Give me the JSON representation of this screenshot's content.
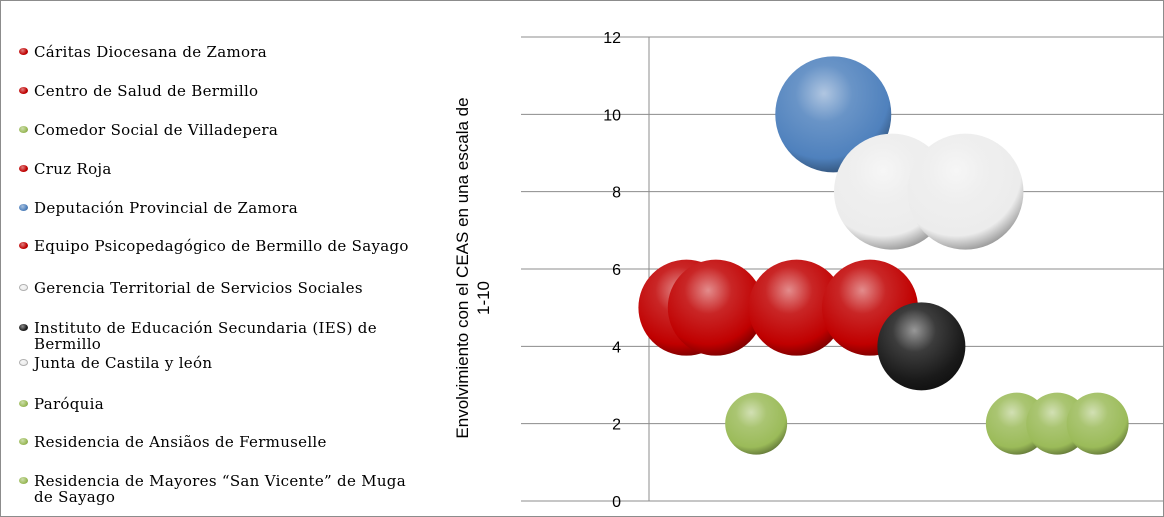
{
  "chart_data": {
    "type": "scatter",
    "ylabel_line1": "Envolvimiento con el CEAS en una escala de",
    "ylabel_line2": "1-10",
    "ylim": [
      0,
      12
    ],
    "yticks": [
      0,
      2,
      4,
      6,
      8,
      10,
      12
    ],
    "grid": true,
    "legend_position": "left",
    "series": [
      {
        "name": "Cáritas Diocesana de Zamora",
        "color": "#c00000",
        "x": 1.35,
        "y": 5
      },
      {
        "name": "Centro de Salud de Bermillo",
        "color": "#c00000",
        "x": 1.75,
        "y": 5
      },
      {
        "name": "Comedor Social de Villadepera",
        "color": "#9bbb59",
        "x": 2.3,
        "y": 2
      },
      {
        "name": "Cruz Roja",
        "color": "#c00000",
        "x": 2.85,
        "y": 5
      },
      {
        "name": "Deputación Provincial de Zamora",
        "color": "#4f81bd",
        "x": 3.35,
        "y": 10
      },
      {
        "name": "Equipo Psicopedagógico de Bermillo de Sayago",
        "color": "#c00000",
        "x": 3.85,
        "y": 5
      },
      {
        "name": "Gerencia Territorial de Servicios  Sociales",
        "color": "#ececec",
        "x": 4.15,
        "y": 8
      },
      {
        "name": "Instituto de Educación Secundaria (IES) de Bermillo",
        "color": "#1a1a1a",
        "x": 4.55,
        "y": 4
      },
      {
        "name": "Junta de Castila y león",
        "color": "#ececec",
        "x": 5.15,
        "y": 8
      },
      {
        "name": "Paróquia",
        "color": "#9bbb59",
        "x": 5.85,
        "y": 2
      },
      {
        "name": "Residencia de Ansiãos de Fermuselle",
        "color": "#9bbb59",
        "x": 6.4,
        "y": 2
      },
      {
        "name": "Residencia de Mayores “San Vicente” de Muga de Sayago",
        "color": "#9bbb59",
        "x": 6.95,
        "y": 2
      }
    ]
  }
}
